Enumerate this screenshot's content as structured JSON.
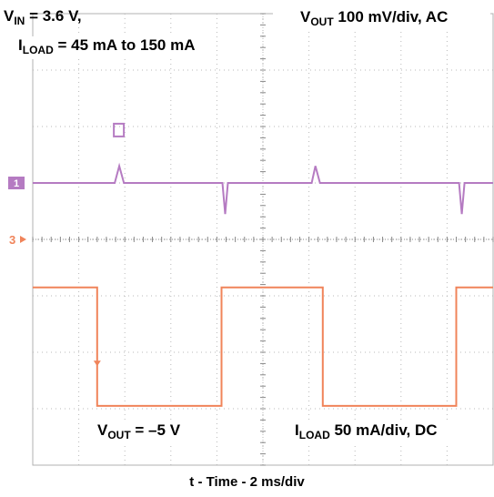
{
  "chart_data": {
    "type": "line",
    "xlabel": "t - Time - 2 ms/div",
    "labels": {
      "vin_prefix": "V",
      "vin_sub": "IN",
      "vin_value": " = 3.6 V,",
      "iload_prefix": "I",
      "iload_sub": "LOAD",
      "iload_value": " = 45 mA to 150 mA",
      "ch1_prefix": "V",
      "ch1_sub": "OUT",
      "ch1_value": " 100 mV/div, AC",
      "ch2_prefix": "V",
      "ch2_sub": "OUT",
      "ch2_value": " = –5 V",
      "ch3_prefix": "I",
      "ch3_sub": "LOAD",
      "ch3_value": " 50 mA/div, DC"
    },
    "channel_markers": [
      "1",
      "3"
    ],
    "grid": {
      "divisions_x": 10,
      "divisions_y": 8
    },
    "series": [
      {
        "name": "VOUT 100 mV/div, AC",
        "unit": "div",
        "color": "#b57bc2",
        "points": [
          [
            0,
            5.0
          ],
          [
            1.78,
            5.0
          ],
          [
            1.88,
            5.3
          ],
          [
            1.98,
            5.0
          ],
          [
            4.12,
            5.0
          ],
          [
            4.18,
            4.45
          ],
          [
            4.24,
            5.0
          ],
          [
            6.06,
            5.0
          ],
          [
            6.14,
            5.3
          ],
          [
            6.24,
            5.0
          ],
          [
            9.26,
            5.0
          ],
          [
            9.32,
            4.45
          ],
          [
            9.38,
            5.0
          ],
          [
            10,
            5.0
          ]
        ]
      },
      {
        "name": "ILOAD 50 mA/div, DC",
        "unit": "div",
        "color": "#f0845a",
        "points": [
          [
            0,
            3.15
          ],
          [
            1.4,
            3.15
          ],
          [
            1.4,
            1.05
          ],
          [
            4.1,
            1.05
          ],
          [
            4.1,
            3.15
          ],
          [
            6.3,
            3.15
          ],
          [
            6.3,
            1.05
          ],
          [
            9.2,
            1.05
          ],
          [
            9.2,
            3.15
          ],
          [
            10,
            3.15
          ]
        ]
      }
    ],
    "colors": {
      "grid": "#b9b9b9",
      "frame": "#b0b0b0",
      "ch1": "#b57bc2",
      "ch3": "#f0845a"
    }
  }
}
